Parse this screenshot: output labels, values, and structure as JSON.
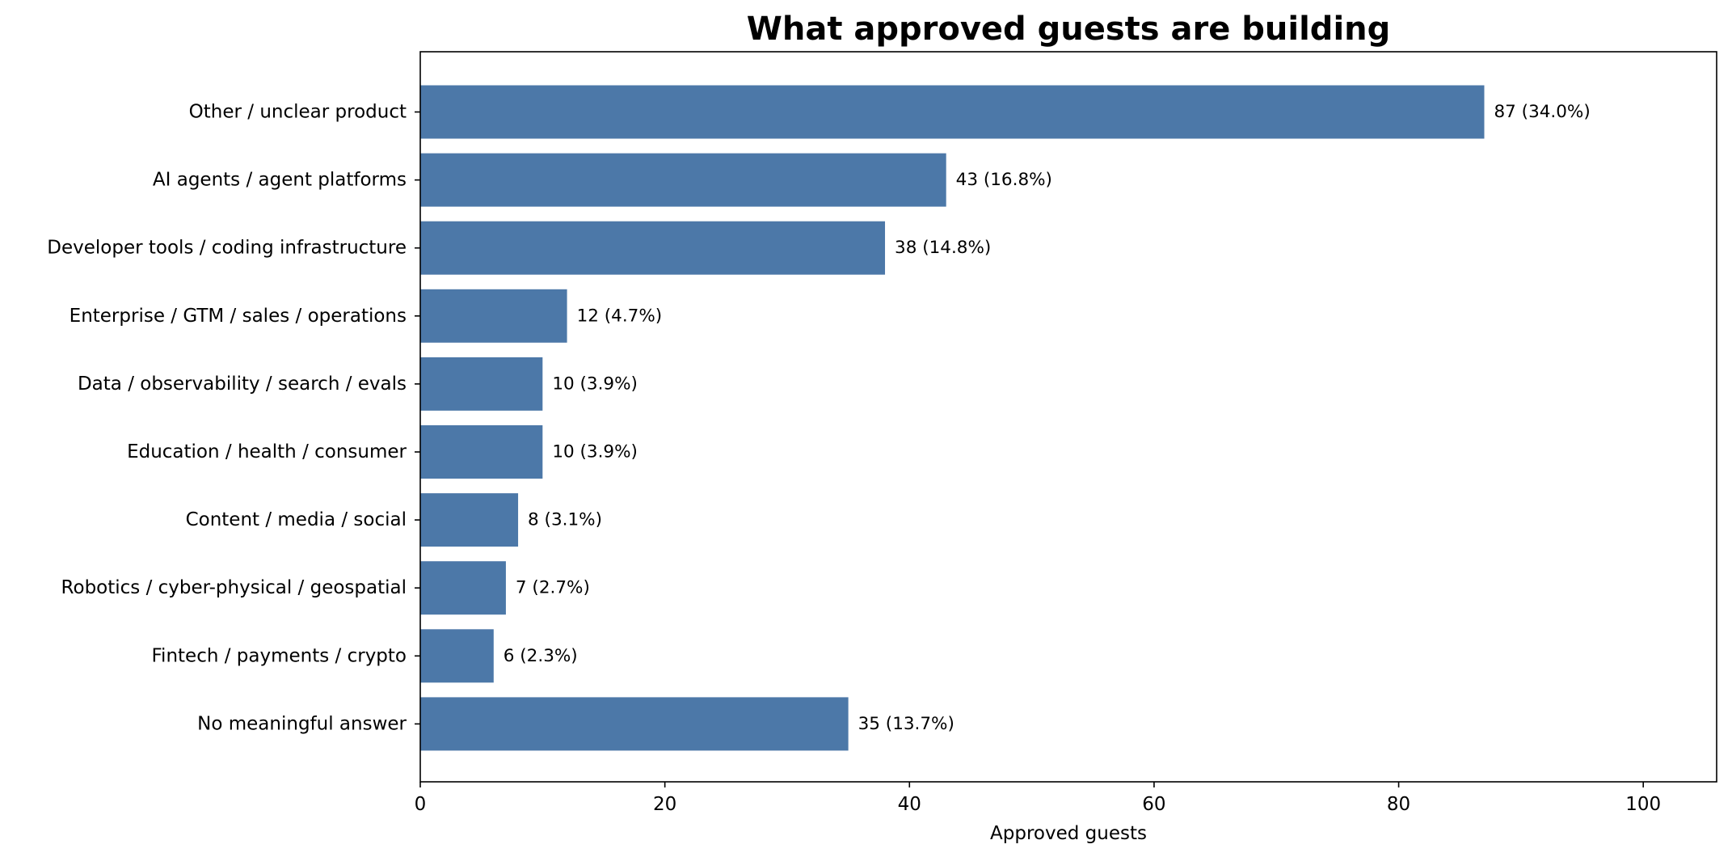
{
  "chart_data": {
    "type": "bar",
    "orientation": "horizontal",
    "title": "What approved guests are building",
    "xlabel": "Approved guests",
    "ylabel": "",
    "xlim": [
      0,
      106
    ],
    "xticks": [
      0,
      20,
      40,
      60,
      80,
      100
    ],
    "grid": false,
    "bar_color": "#4c78a8",
    "categories": [
      "Other / unclear product",
      "AI agents / agent platforms",
      "Developer tools / coding infrastructure",
      "Enterprise / GTM / sales / operations",
      "Data / observability / search / evals",
      "Education / health / consumer",
      "Content / media / social",
      "Robotics / cyber-physical / geospatial",
      "Fintech / payments / crypto",
      "No meaningful answer"
    ],
    "values": [
      87,
      43,
      38,
      12,
      10,
      10,
      8,
      7,
      6,
      35
    ],
    "data_labels": [
      "87 (34.0%)",
      "43 (16.8%)",
      "38 (14.8%)",
      "12 (4.7%)",
      "10 (3.9%)",
      "10 (3.9%)",
      "8 (3.1%)",
      "7 (2.7%)",
      "6 (2.3%)",
      "35 (13.7%)"
    ]
  }
}
